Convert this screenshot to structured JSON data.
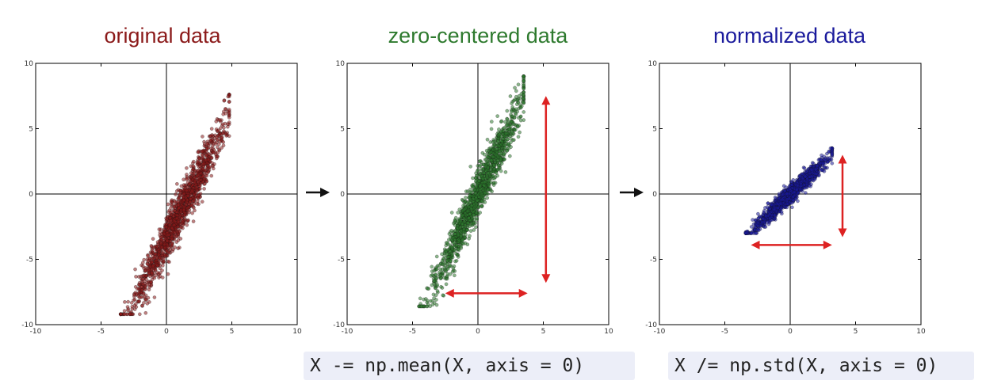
{
  "colors": {
    "original": "#8b1a1a",
    "zero_centered": "#2e7a2e",
    "normalized": "#1a1a9c",
    "arrow": "#dd2222",
    "flow_arrow": "#111111"
  },
  "code": {
    "mean_line": "X -= np.mean(X, axis = 0)",
    "std_line": "X /= np.std(X, axis = 0)"
  },
  "chart_data": [
    {
      "type": "scatter",
      "title": "original data",
      "xlim": [
        -10,
        10
      ],
      "ylim": [
        -10,
        10
      ],
      "xticks": [
        -10,
        -5,
        0,
        5,
        10
      ],
      "yticks": [
        -10,
        -5,
        0,
        5,
        10
      ],
      "xtick_labels": [
        "-10",
        "-5",
        "0",
        "5",
        "10"
      ],
      "ytick_labels": [
        "-10",
        "-5",
        "0",
        "5",
        "10"
      ],
      "grid": false,
      "distribution": {
        "mean_x": 1.0,
        "mean_y": -1.5,
        "x_range": [
          -3.5,
          4.8
        ],
        "y_range": [
          -9.2,
          7.6
        ]
      },
      "point_color": "#8b1a1a"
    },
    {
      "type": "scatter",
      "title": "zero-centered data",
      "xlim": [
        -10,
        10
      ],
      "ylim": [
        -10,
        10
      ],
      "xticks": [
        -10,
        -5,
        0,
        5,
        10
      ],
      "yticks": [
        -10,
        -5,
        0,
        5,
        10
      ],
      "xtick_labels": [
        "-10",
        "-5",
        "0",
        "5",
        "10"
      ],
      "ytick_labels": [
        "-10",
        "-5",
        "0",
        "5",
        "10"
      ],
      "grid": false,
      "distribution": {
        "mean_x": 0.0,
        "mean_y": 0.0,
        "x_range": [
          -4.5,
          3.5
        ],
        "y_range": [
          -8.6,
          9.0
        ]
      },
      "point_color": "#2e7a2e",
      "annotations": [
        {
          "type": "double-arrow",
          "from": [
            5.2,
            7.5
          ],
          "to": [
            5.2,
            -6.8
          ],
          "color": "#dd2222"
        },
        {
          "type": "double-arrow",
          "from": [
            -2.5,
            -7.6
          ],
          "to": [
            3.8,
            -7.6
          ],
          "color": "#dd2222"
        }
      ]
    },
    {
      "type": "scatter",
      "title": "normalized data",
      "xlim": [
        -10,
        10
      ],
      "ylim": [
        -10,
        10
      ],
      "xticks": [
        -10,
        -5,
        0,
        5,
        10
      ],
      "yticks": [
        -10,
        -5,
        0,
        5,
        10
      ],
      "xtick_labels": [
        "-10",
        "-5",
        "0",
        "5",
        "10"
      ],
      "ytick_labels": [
        "-10",
        "-5",
        "0",
        "5",
        "10"
      ],
      "grid": false,
      "distribution": {
        "mean_x": 0.0,
        "mean_y": 0.0,
        "x_range": [
          -3.4,
          3.2
        ],
        "y_range": [
          -3.0,
          3.5
        ]
      },
      "point_color": "#1a1a9c",
      "annotations": [
        {
          "type": "double-arrow",
          "from": [
            4.0,
            3.0
          ],
          "to": [
            4.0,
            -3.3
          ],
          "color": "#dd2222"
        },
        {
          "type": "double-arrow",
          "from": [
            -3.0,
            -3.9
          ],
          "to": [
            3.2,
            -3.9
          ],
          "color": "#dd2222"
        }
      ]
    }
  ]
}
